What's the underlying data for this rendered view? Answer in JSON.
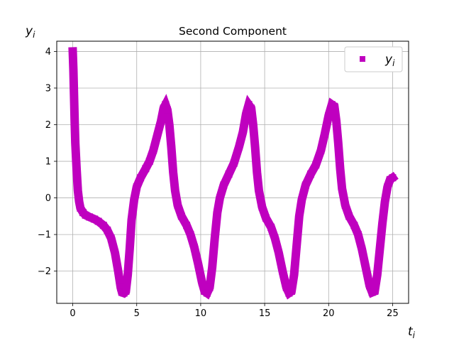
{
  "chart_data": {
    "type": "scatter",
    "title": "Second Component",
    "xlabel": "t",
    "xlabel_sub": "i",
    "ylabel": "y",
    "ylabel_sub": "i",
    "xlim": [
      -1.25,
      26.25
    ],
    "ylim": [
      -2.88,
      4.28
    ],
    "xticks": [
      0,
      5,
      10,
      15,
      20,
      25
    ],
    "yticks": [
      -2,
      -1,
      0,
      1,
      2,
      3,
      4
    ],
    "grid": true,
    "legend_position": "top-right",
    "series": [
      {
        "name": "y",
        "name_sub": "i",
        "color": "#bf00bf",
        "marker": "square",
        "points": [
          [
            0.0,
            4.0
          ],
          [
            0.05,
            3.5
          ],
          [
            0.1,
            2.8
          ],
          [
            0.15,
            2.1
          ],
          [
            0.2,
            1.5
          ],
          [
            0.3,
            0.8
          ],
          [
            0.4,
            0.2
          ],
          [
            0.5,
            -0.1
          ],
          [
            0.6,
            -0.28
          ],
          [
            0.8,
            -0.4
          ],
          [
            1.0,
            -0.47
          ],
          [
            1.3,
            -0.52
          ],
          [
            1.7,
            -0.58
          ],
          [
            2.0,
            -0.64
          ],
          [
            2.4,
            -0.75
          ],
          [
            2.7,
            -0.88
          ],
          [
            3.0,
            -1.1
          ],
          [
            3.3,
            -1.5
          ],
          [
            3.55,
            -2.0
          ],
          [
            3.75,
            -2.45
          ],
          [
            3.85,
            -2.58
          ],
          [
            4.0,
            -2.6
          ],
          [
            4.15,
            -2.55
          ],
          [
            4.3,
            -2.1
          ],
          [
            4.45,
            -1.4
          ],
          [
            4.6,
            -0.6
          ],
          [
            4.8,
            -0.05
          ],
          [
            5.0,
            0.3
          ],
          [
            5.3,
            0.55
          ],
          [
            5.7,
            0.8
          ],
          [
            6.0,
            1.0
          ],
          [
            6.3,
            1.3
          ],
          [
            6.6,
            1.7
          ],
          [
            6.9,
            2.1
          ],
          [
            7.1,
            2.45
          ],
          [
            7.25,
            2.55
          ],
          [
            7.4,
            2.4
          ],
          [
            7.55,
            2.0
          ],
          [
            7.7,
            1.4
          ],
          [
            7.85,
            0.7
          ],
          [
            8.0,
            0.2
          ],
          [
            8.2,
            -0.2
          ],
          [
            8.5,
            -0.5
          ],
          [
            8.9,
            -0.75
          ],
          [
            9.2,
            -1.0
          ],
          [
            9.5,
            -1.35
          ],
          [
            9.8,
            -1.8
          ],
          [
            10.1,
            -2.3
          ],
          [
            10.3,
            -2.55
          ],
          [
            10.5,
            -2.6
          ],
          [
            10.7,
            -2.45
          ],
          [
            10.9,
            -1.9
          ],
          [
            11.1,
            -1.1
          ],
          [
            11.3,
            -0.4
          ],
          [
            11.5,
            0.0
          ],
          [
            11.8,
            0.35
          ],
          [
            12.2,
            0.65
          ],
          [
            12.6,
            0.95
          ],
          [
            13.0,
            1.4
          ],
          [
            13.3,
            1.8
          ],
          [
            13.55,
            2.3
          ],
          [
            13.75,
            2.55
          ],
          [
            13.95,
            2.45
          ],
          [
            14.1,
            2.0
          ],
          [
            14.25,
            1.4
          ],
          [
            14.4,
            0.7
          ],
          [
            14.55,
            0.2
          ],
          [
            14.8,
            -0.25
          ],
          [
            15.1,
            -0.55
          ],
          [
            15.5,
            -0.8
          ],
          [
            15.8,
            -1.1
          ],
          [
            16.1,
            -1.5
          ],
          [
            16.4,
            -2.0
          ],
          [
            16.7,
            -2.45
          ],
          [
            16.9,
            -2.6
          ],
          [
            17.1,
            -2.55
          ],
          [
            17.3,
            -2.1
          ],
          [
            17.5,
            -1.3
          ],
          [
            17.7,
            -0.5
          ],
          [
            17.9,
            -0.05
          ],
          [
            18.2,
            0.35
          ],
          [
            18.6,
            0.65
          ],
          [
            19.0,
            0.9
          ],
          [
            19.4,
            1.3
          ],
          [
            19.7,
            1.75
          ],
          [
            20.0,
            2.25
          ],
          [
            20.25,
            2.55
          ],
          [
            20.45,
            2.5
          ],
          [
            20.6,
            2.1
          ],
          [
            20.75,
            1.5
          ],
          [
            20.9,
            0.8
          ],
          [
            21.05,
            0.25
          ],
          [
            21.3,
            -0.2
          ],
          [
            21.6,
            -0.5
          ],
          [
            22.0,
            -0.75
          ],
          [
            22.3,
            -1.0
          ],
          [
            22.6,
            -1.4
          ],
          [
            22.9,
            -1.9
          ],
          [
            23.2,
            -2.4
          ],
          [
            23.4,
            -2.58
          ],
          [
            23.6,
            -2.55
          ],
          [
            23.8,
            -2.1
          ],
          [
            24.0,
            -1.4
          ],
          [
            24.2,
            -0.7
          ],
          [
            24.4,
            -0.1
          ],
          [
            24.6,
            0.3
          ],
          [
            24.8,
            0.5
          ],
          [
            25.0,
            0.55
          ]
        ]
      }
    ]
  }
}
